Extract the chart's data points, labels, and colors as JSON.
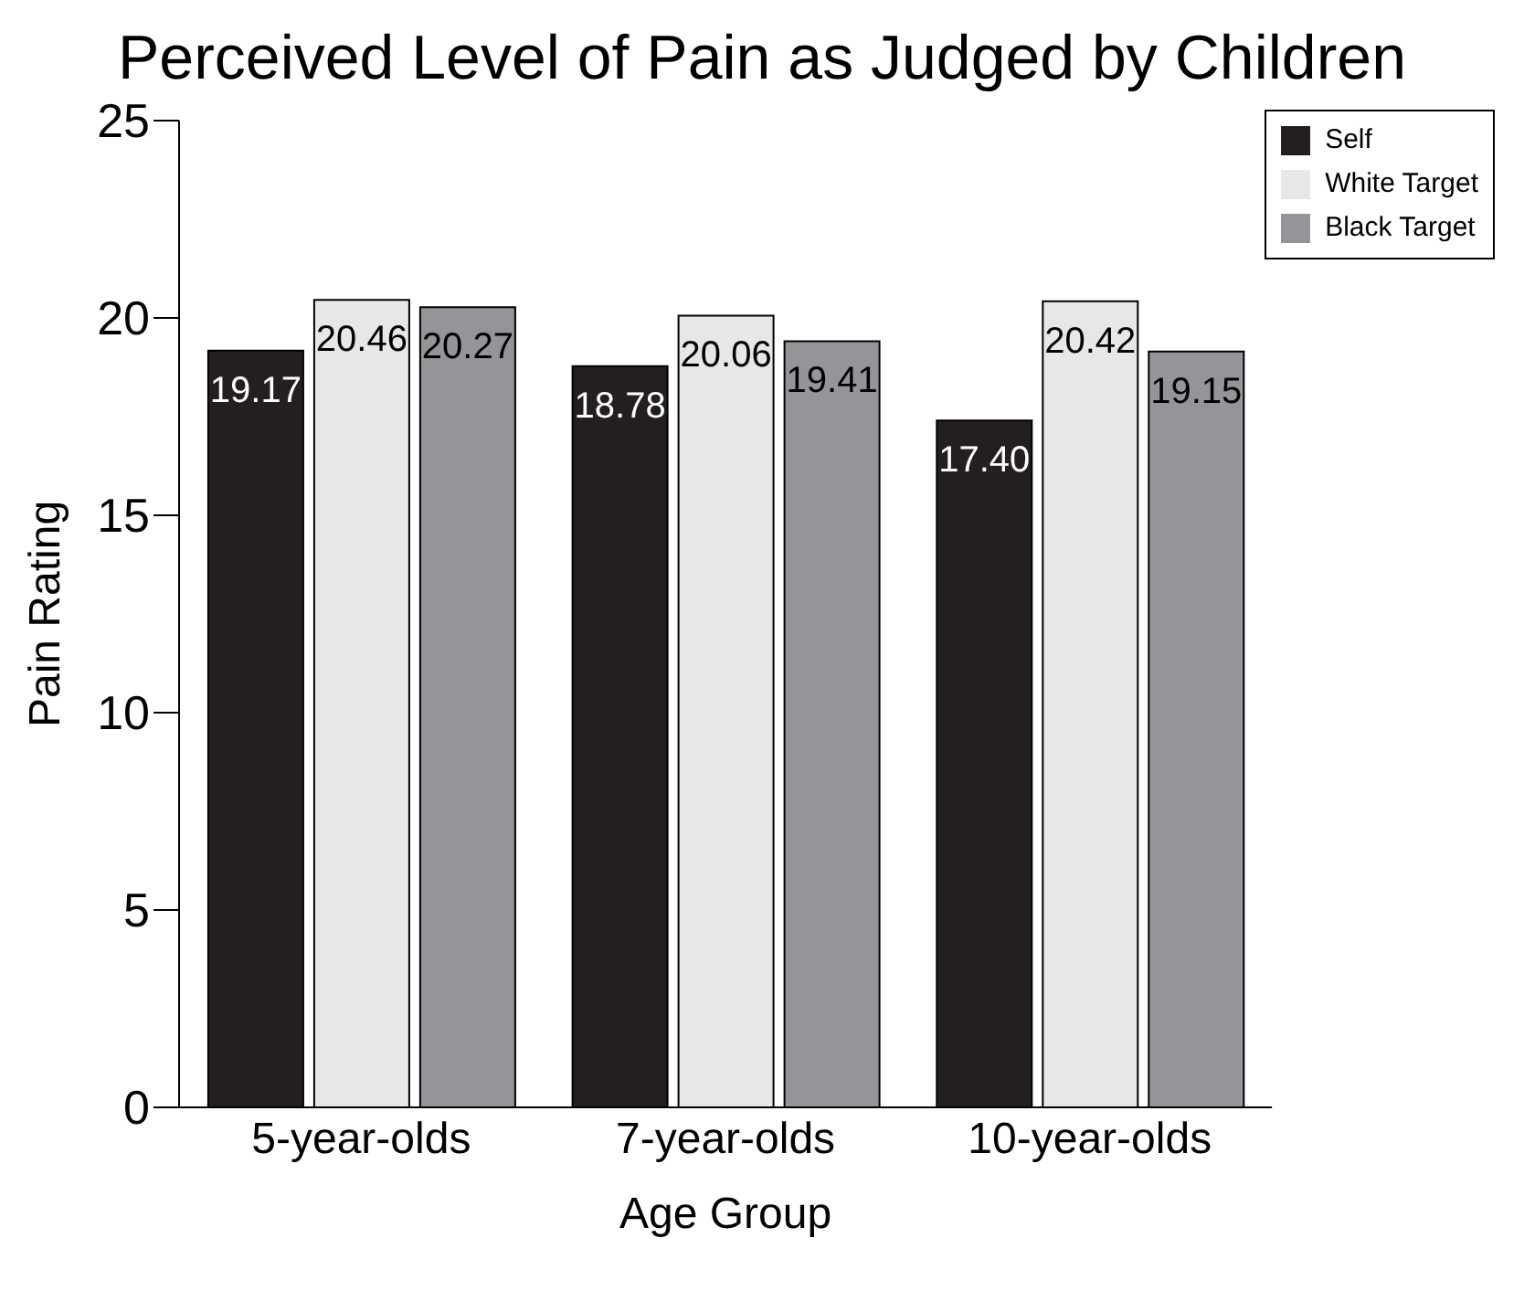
{
  "chart_data": {
    "type": "bar",
    "title": "Perceived Level of Pain as Judged by Children",
    "xlabel": "Age Group",
    "ylabel": "Pain Rating",
    "categories": [
      "5-year-olds",
      "7-year-olds",
      "10-year-olds"
    ],
    "series": [
      {
        "name": "Self",
        "color": "#231f20",
        "values": [
          19.17,
          18.78,
          17.4
        ],
        "value_labels": [
          "19.17",
          "18.78",
          "17.40"
        ]
      },
      {
        "name": "White Target",
        "color": "#e6e7e8",
        "values": [
          20.46,
          20.06,
          20.42
        ],
        "value_labels": [
          "20.46",
          "20.06",
          "20.42"
        ]
      },
      {
        "name": "Black Target",
        "color": "#939598",
        "values": [
          20.27,
          19.41,
          19.15
        ],
        "value_labels": [
          "20.27",
          "19.41",
          "19.15"
        ]
      }
    ],
    "ylim": [
      0,
      25
    ],
    "yticks": [
      0,
      5,
      10,
      15,
      20,
      25
    ],
    "grid": false,
    "legend": "top right"
  }
}
